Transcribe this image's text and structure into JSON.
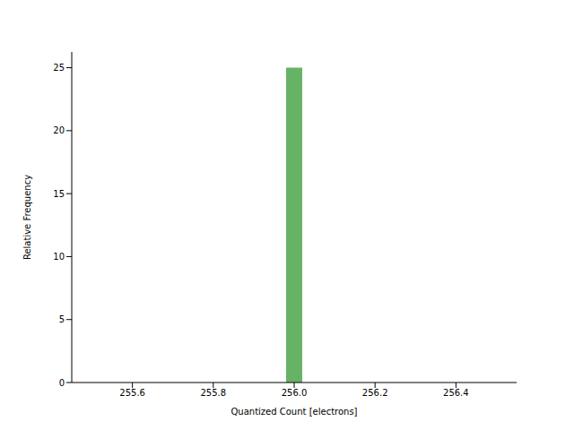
{
  "chart_data": {
    "type": "histogram",
    "xlabel": "Quantized Count [electrons]",
    "ylabel": "Relative Frequency",
    "bins": [
      255.5,
      255.54,
      255.58,
      255.62,
      255.66,
      255.7,
      255.74,
      255.78,
      255.82,
      255.86,
      255.9,
      255.94,
      255.98,
      256.02,
      256.06,
      256.1,
      256.14,
      256.18,
      256.22,
      256.26,
      256.3,
      256.34,
      256.38,
      256.42,
      256.46,
      256.5
    ],
    "values": [
      0,
      0,
      0,
      0,
      0,
      0,
      0,
      0,
      0,
      0,
      0,
      0,
      25,
      0,
      0,
      0,
      0,
      0,
      0,
      0,
      0,
      0,
      0,
      0,
      0
    ],
    "color": "#008000",
    "xlim": [
      255.45,
      256.55
    ],
    "xticks": [
      255.6,
      255.8,
      {
        "value": 256,
        "label": "256.0"
      },
      256.2,
      256.4
    ],
    "ylim": [
      0,
      26.25
    ],
    "yticks": [
      0,
      5,
      10,
      15,
      20,
      25
    ],
    "grid": false
  }
}
